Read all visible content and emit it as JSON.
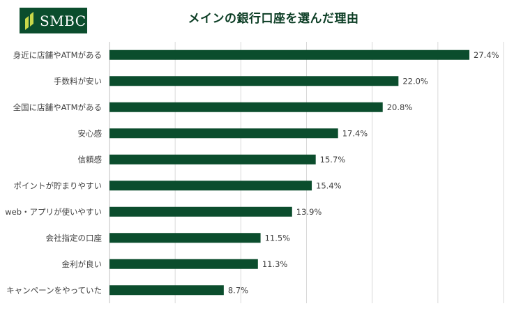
{
  "brand": {
    "logo_text": "SMBC",
    "logo_icon": "smbc-leaf-mark",
    "color": "#0b4d2d"
  },
  "chart_data": {
    "type": "bar",
    "orientation": "horizontal",
    "title": "メインの銀行口座を選んだ理由",
    "categories": [
      "身近に店舗やATMがある",
      "手数料が安い",
      "全国に店舗やATMがある",
      "安心感",
      "信頼感",
      "ポイントが貯まりやすい",
      "web・アプリが使いやすい",
      "会社指定の口座",
      "金利が良い",
      "キャンペーンをやっていた"
    ],
    "values": [
      27.4,
      22.0,
      20.8,
      17.4,
      15.7,
      15.4,
      13.9,
      11.5,
      11.3,
      8.7
    ],
    "value_labels": [
      "27.4%",
      "22.0%",
      "20.8%",
      "17.4%",
      "15.7%",
      "15.4%",
      "13.9%",
      "11.5%",
      "11.3%",
      "8.7%"
    ],
    "xlim": [
      0,
      30
    ],
    "grid": true,
    "legend": "none",
    "bar_color": "#0b4d2d",
    "grid_color": "#d9d9d9"
  }
}
